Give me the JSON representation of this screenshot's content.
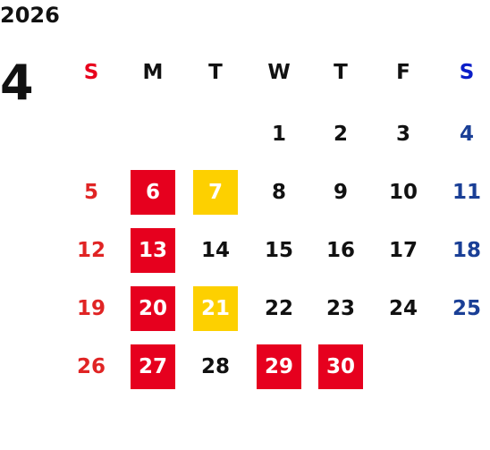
{
  "calendar": {
    "year": "2026",
    "month": "4",
    "weekdays": [
      {
        "label": "S",
        "color": "#e8001c"
      },
      {
        "label": "M",
        "color": "#111111"
      },
      {
        "label": "T",
        "color": "#111111"
      },
      {
        "label": "W",
        "color": "#111111"
      },
      {
        "label": "T",
        "color": "#111111"
      },
      {
        "label": "F",
        "color": "#111111"
      },
      {
        "label": "S",
        "color": "#0b1ec8"
      }
    ],
    "first_weekday_index": 3,
    "days": [
      {
        "day": "1"
      },
      {
        "day": "2"
      },
      {
        "day": "3"
      },
      {
        "day": "4"
      },
      {
        "day": "5"
      },
      {
        "day": "6",
        "highlight": "red"
      },
      {
        "day": "7",
        "highlight": "yellow"
      },
      {
        "day": "8"
      },
      {
        "day": "9"
      },
      {
        "day": "10"
      },
      {
        "day": "11"
      },
      {
        "day": "12"
      },
      {
        "day": "13",
        "highlight": "red"
      },
      {
        "day": "14"
      },
      {
        "day": "15"
      },
      {
        "day": "16"
      },
      {
        "day": "17"
      },
      {
        "day": "18"
      },
      {
        "day": "19"
      },
      {
        "day": "20",
        "highlight": "red"
      },
      {
        "day": "21",
        "highlight": "yellow"
      },
      {
        "day": "22"
      },
      {
        "day": "23"
      },
      {
        "day": "24"
      },
      {
        "day": "25"
      },
      {
        "day": "26"
      },
      {
        "day": "27",
        "highlight": "red"
      },
      {
        "day": "28"
      },
      {
        "day": "29",
        "highlight": "red"
      },
      {
        "day": "30",
        "highlight": "red"
      }
    ]
  },
  "colors": {
    "sunday_text": "#e02424",
    "saturday_text": "#1a3f96",
    "weekday_text": "#111111",
    "highlight_red": "#e6001e",
    "highlight_yellow": "#fdd000"
  }
}
